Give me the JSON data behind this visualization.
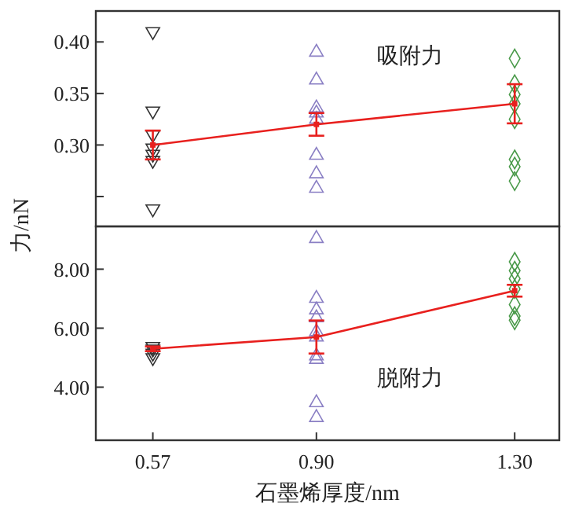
{
  "chart_data": [
    {
      "type": "scatter",
      "ylabel": "力/nN",
      "annotations": [
        "吸附力"
      ],
      "xlim": [
        0.455,
        1.39
      ],
      "ylim": [
        0.221,
        0.43
      ],
      "yticks": [
        {
          "value": 0.25,
          "label": null
        },
        {
          "value": 0.3,
          "label": "0.30"
        },
        {
          "value": 0.35,
          "label": "0.35"
        },
        {
          "value": 0.4,
          "label": "0.40"
        }
      ],
      "tick_labels": "y",
      "series": [
        {
          "color": "#333333",
          "marker": "triangle-down",
          "x": [
            0.57,
            0.57,
            0.57,
            0.57,
            0.57,
            0.57,
            0.57
          ],
          "values": [
            0.41,
            0.333,
            0.31,
            0.297,
            0.291,
            0.285,
            0.238
          ]
        },
        {
          "color": "#8a7fc4",
          "marker": "triangle",
          "x": [
            0.9,
            0.9,
            0.9,
            0.9,
            0.9,
            0.9,
            0.9,
            0.9
          ],
          "values": [
            0.39,
            0.363,
            0.336,
            0.331,
            0.325,
            0.29,
            0.272,
            0.258
          ]
        },
        {
          "color": "#4a9a4a",
          "marker": "diamond",
          "x": [
            1.3,
            1.3,
            1.3,
            1.3,
            1.3,
            1.3,
            1.3,
            1.3
          ],
          "values": [
            0.384,
            0.359,
            0.349,
            0.34,
            0.325,
            0.286,
            0.279,
            0.265
          ]
        },
        {
          "type": "line",
          "color": "#e8201e",
          "marker": "square",
          "x": [
            0.57,
            0.9,
            1.3
          ],
          "values": [
            0.3,
            0.32,
            0.34
          ],
          "errors": [
            0.014,
            0.011,
            0.019
          ]
        }
      ]
    },
    {
      "type": "scatter",
      "xlabel": "石墨烯厚度/nm",
      "annotations": [
        "脱附力"
      ],
      "xlim": [
        0.455,
        1.39
      ],
      "xticks": [
        {
          "value": 0.57,
          "label": "0.57"
        },
        {
          "value": 0.9,
          "label": "0.90"
        },
        {
          "value": 1.3,
          "label": "1.30"
        }
      ],
      "ylim": [
        2.2,
        9.45
      ],
      "yticks": [
        {
          "value": 4,
          "label": "4.00"
        },
        {
          "value": 6,
          "label": "6.00"
        },
        {
          "value": 8,
          "label": "8.00"
        }
      ],
      "series": [
        {
          "color": "#333333",
          "marker": "triangle-down",
          "x": [
            0.57,
            0.57,
            0.57,
            0.57
          ],
          "values": [
            5.38,
            5.29,
            5.15,
            5.0
          ]
        },
        {
          "color": "#8a7fc4",
          "marker": "triangle",
          "x": [
            0.9,
            0.9,
            0.9,
            0.9,
            0.9,
            0.9,
            0.9,
            0.9,
            0.9,
            0.9
          ],
          "values": [
            9.04,
            7.01,
            6.62,
            6.35,
            5.88,
            5.7,
            5.06,
            4.94,
            3.47,
            2.97
          ]
        },
        {
          "color": "#4a9a4a",
          "marker": "diamond",
          "x": [
            1.3,
            1.3,
            1.3,
            1.3,
            1.3,
            1.3,
            1.3
          ],
          "values": [
            8.25,
            7.95,
            7.68,
            7.33,
            6.8,
            6.41,
            6.27
          ]
        },
        {
          "type": "line",
          "color": "#e8201e",
          "marker": "square",
          "x": [
            0.57,
            0.9,
            1.3
          ],
          "values": [
            5.3,
            5.7,
            7.27
          ],
          "errors": [
            0.08,
            0.56,
            0.2
          ]
        }
      ]
    }
  ]
}
